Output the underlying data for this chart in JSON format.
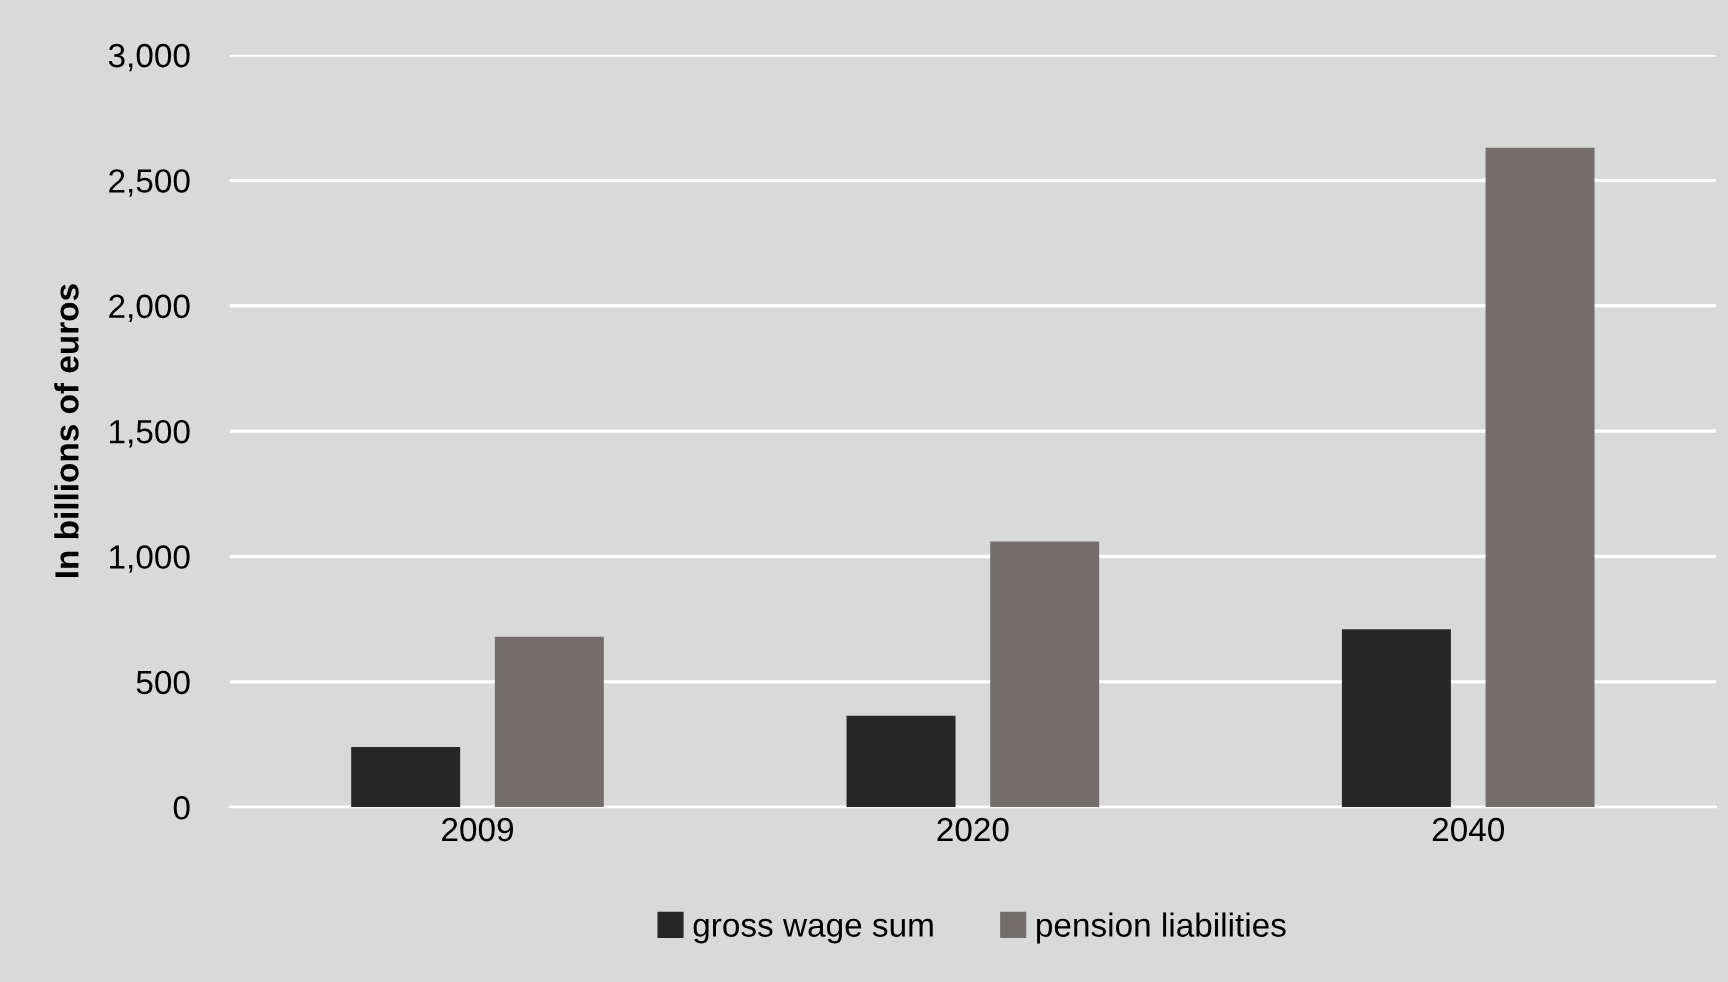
{
  "chart_data": {
    "type": "bar",
    "ylabel": "In billions of euros",
    "categories": [
      "2009",
      "2020",
      "2040"
    ],
    "series": [
      {
        "name": "gross wage sum",
        "color": "#262626",
        "values": [
          240,
          365,
          710
        ]
      },
      {
        "name": "pension liabilities",
        "color": "#736e6c",
        "values": [
          680,
          1060,
          2630
        ]
      }
    ],
    "ylim": [
      0,
      3000
    ],
    "yticks": [
      {
        "value": 0,
        "label": "0"
      },
      {
        "value": 500,
        "label": "500"
      },
      {
        "value": 1000,
        "label": "1,000"
      },
      {
        "value": 1500,
        "label": "1,500"
      },
      {
        "value": 2000,
        "label": "2,000"
      },
      {
        "value": 2500,
        "label": "2,500"
      },
      {
        "value": 3000,
        "label": "3,000"
      }
    ],
    "grid": "y",
    "legend": "bottom"
  }
}
